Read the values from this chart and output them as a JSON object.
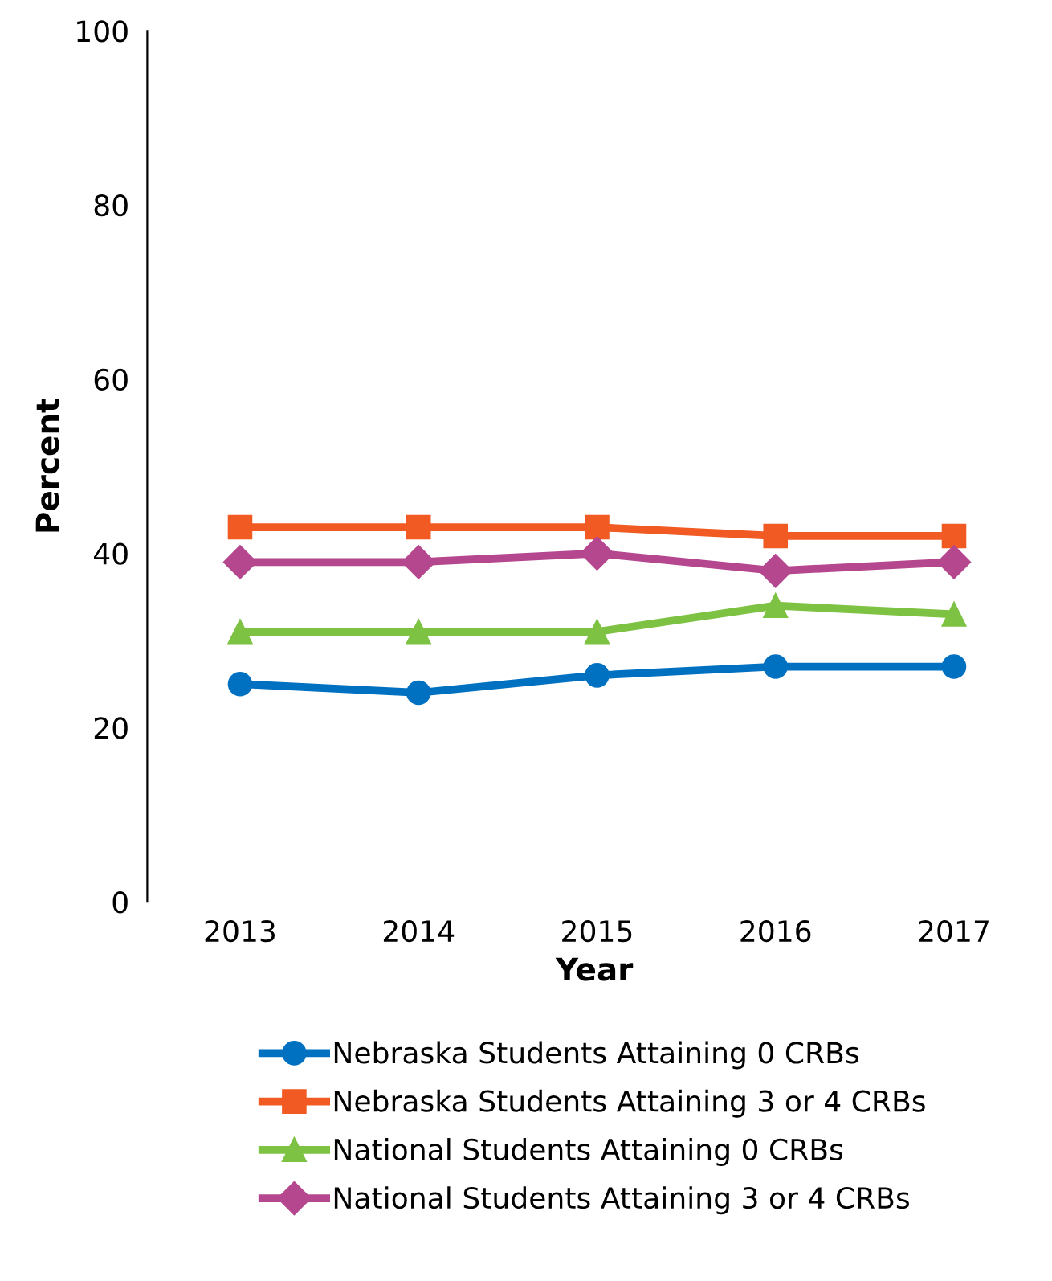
{
  "chart_data": {
    "type": "line",
    "xlabel": "Year",
    "ylabel": "Percent",
    "categories": [
      "2013",
      "2014",
      "2015",
      "2016",
      "2017"
    ],
    "series": [
      {
        "name": "Nebraska Students Attaining 0 CRBs",
        "color": "#0070c0",
        "marker": "circle",
        "values": [
          25,
          24,
          26,
          27,
          27
        ]
      },
      {
        "name": "Nebraska Students Attaining 3 or 4 CRBs",
        "color": "#f15a22",
        "marker": "square",
        "values": [
          43,
          43,
          43,
          42,
          42
        ]
      },
      {
        "name": "National Students Attaining 0 CRBs",
        "color": "#7dc242",
        "marker": "triangle",
        "values": [
          31,
          31,
          31,
          34,
          33
        ]
      },
      {
        "name": "National Students Attaining 3 or 4 CRBs",
        "color": "#b5478f",
        "marker": "diamond",
        "values": [
          39,
          39,
          40,
          38,
          39
        ]
      }
    ],
    "ylim": [
      0,
      100
    ],
    "yticks": [
      0,
      20,
      40,
      60,
      80,
      100
    ],
    "grid": false,
    "legend": "bottom",
    "line_style": "solid"
  }
}
